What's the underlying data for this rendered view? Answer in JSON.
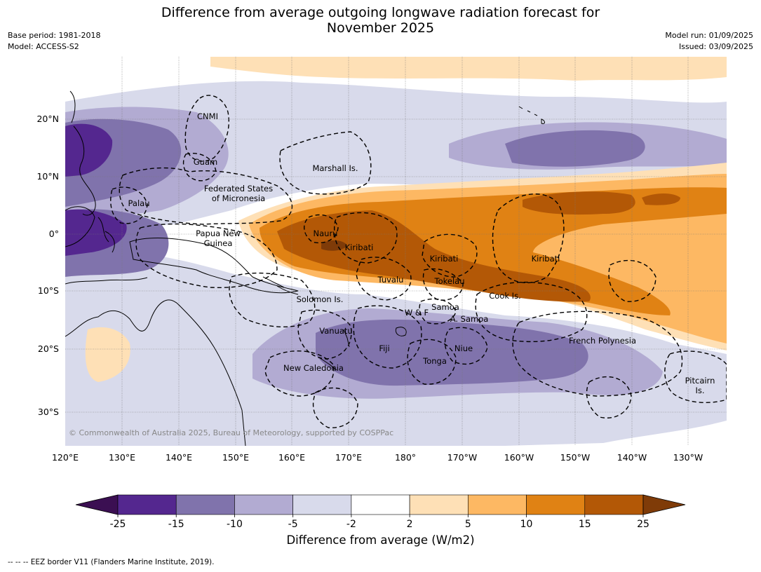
{
  "title_line1": "Difference from average outgoing longwave radiation forecast for",
  "title_line2": "November 2025",
  "meta_left": [
    "Base period: 1981-2018",
    "Model: ACCESS-S2"
  ],
  "meta_right": [
    "Model run: 01/09/2025",
    "Issued: 03/09/2025"
  ],
  "lon_ticks": [
    "120°E",
    "130°E",
    "140°E",
    "150°E",
    "160°E",
    "170°E",
    "180°",
    "170°W",
    "160°W",
    "150°W",
    "140°W",
    "130°W"
  ],
  "lat_ticks": [
    "20°N",
    "10°N",
    "0°",
    "10°S",
    "20°S",
    "30°S"
  ],
  "places": [
    {
      "name": "CNMI",
      "lines": [
        "CNMI"
      ]
    },
    {
      "name": "Guam",
      "lines": [
        "Guam"
      ]
    },
    {
      "name": "Marshall Is.",
      "lines": [
        "Marshall Is."
      ]
    },
    {
      "name": "Federated States of Micronesia",
      "lines": [
        "Federated States",
        "of Micronesia"
      ]
    },
    {
      "name": "Palau",
      "lines": [
        "Palau"
      ]
    },
    {
      "name": "Papua New Guinea",
      "lines": [
        "Papua New",
        "Guinea"
      ]
    },
    {
      "name": "Nauru",
      "lines": [
        "Nauru"
      ]
    },
    {
      "name": "Kiribati west",
      "lines": [
        "Kiribati"
      ]
    },
    {
      "name": "Kiribati central",
      "lines": [
        "Kiribati"
      ]
    },
    {
      "name": "Kiribati east",
      "lines": [
        "Kiribati"
      ]
    },
    {
      "name": "Tuvalu",
      "lines": [
        "Tuvalu"
      ]
    },
    {
      "name": "Tokelau",
      "lines": [
        "Tokelau"
      ]
    },
    {
      "name": "Cook Is.",
      "lines": [
        "Cook Is."
      ]
    },
    {
      "name": "Solomon Is.",
      "lines": [
        "Solomon Is."
      ]
    },
    {
      "name": "Samoa",
      "lines": [
        "Samoa"
      ]
    },
    {
      "name": "W & F",
      "lines": [
        "W & F"
      ]
    },
    {
      "name": "A. Samoa",
      "lines": [
        "A. Samoa"
      ]
    },
    {
      "name": "Vanuatu",
      "lines": [
        "Vanuatu"
      ]
    },
    {
      "name": "Fiji",
      "lines": [
        "Fiji"
      ]
    },
    {
      "name": "Niue",
      "lines": [
        "Niue"
      ]
    },
    {
      "name": "Tonga",
      "lines": [
        "Tonga"
      ]
    },
    {
      "name": "New Caledonia",
      "lines": [
        "New Caledonia"
      ]
    },
    {
      "name": "French Polynesia",
      "lines": [
        "French Polynesia"
      ]
    },
    {
      "name": "Pitcairn Is.",
      "lines": [
        "Pitcairn",
        "Is."
      ]
    }
  ],
  "copyright": "© Commonwealth of Australia 2025, Bureau of Meteorology, supported by COSPPac",
  "colorbar": {
    "title": "Difference from average (W/m2)",
    "bounds": [
      "-25",
      "-15",
      "-10",
      "-5",
      "-2",
      "2",
      "5",
      "10",
      "15",
      "25"
    ],
    "colors": {
      "lt_minus25": "#3b0f52",
      "minus25_minus15": "#54278f",
      "minus15_minus10": "#8073ac",
      "minus10_minus5": "#b2abd2",
      "minus5_minus2": "#d8daeb",
      "minus2_2": "#ffffff",
      "2_5": "#fee0b6",
      "5_10": "#fdb863",
      "10_15": "#e08214",
      "15_25": "#b35806",
      "gt_25": "#7f3b08"
    }
  },
  "footnote": "--  --  -- EEZ border V11 (Flanders Marine Institute, 2019)."
}
